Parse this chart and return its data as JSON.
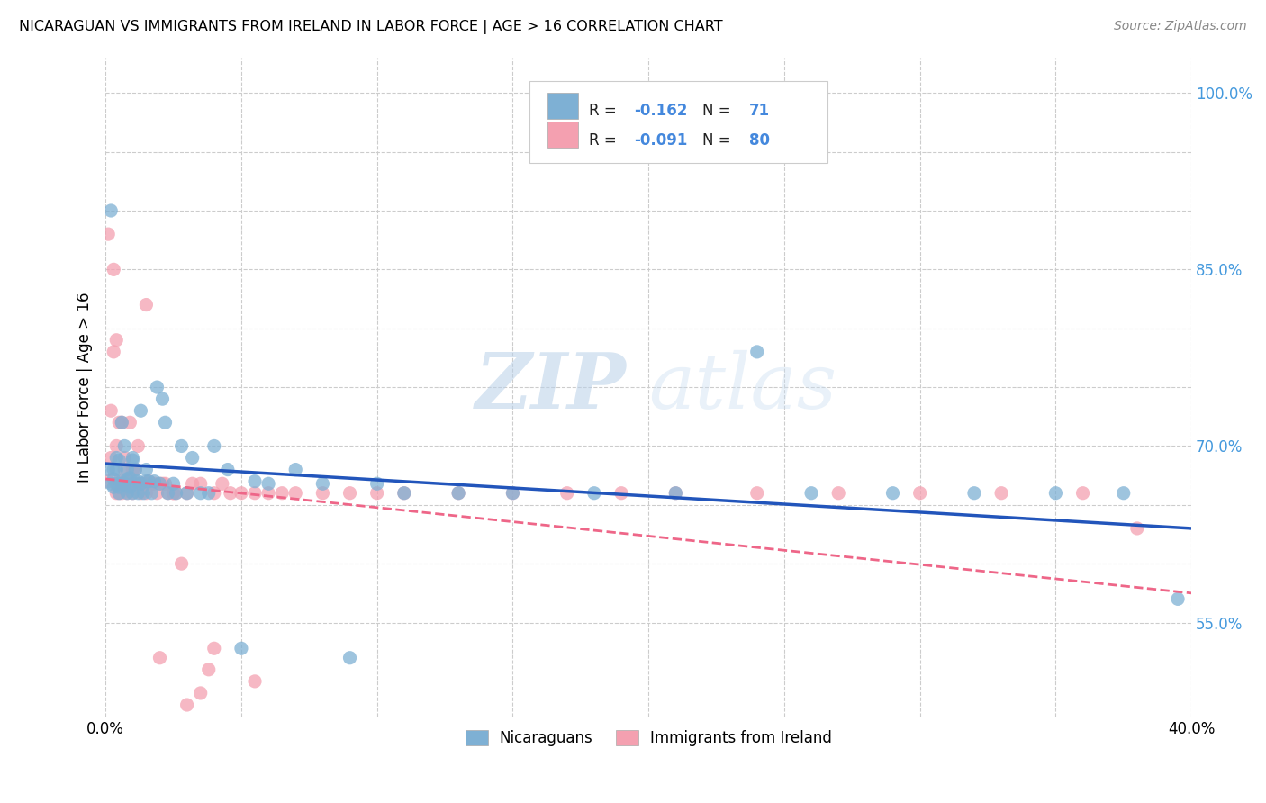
{
  "title": "NICARAGUAN VS IMMIGRANTS FROM IRELAND IN LABOR FORCE | AGE > 16 CORRELATION CHART",
  "source": "Source: ZipAtlas.com",
  "ylabel": "In Labor Force | Age > 16",
  "x_min": 0.0,
  "x_max": 0.4,
  "y_min": 0.47,
  "y_max": 1.03,
  "blue_R": -0.162,
  "blue_N": 71,
  "pink_R": -0.091,
  "pink_N": 80,
  "blue_color": "#7eb0d4",
  "pink_color": "#f4a0b0",
  "blue_line_color": "#2255bb",
  "pink_line_color": "#ee6688",
  "watermark_zip": "ZIP",
  "watermark_atlas": "atlas",
  "legend_label_blue": "Nicaraguans",
  "legend_label_pink": "Immigrants from Ireland",
  "blue_scatter_x": [
    0.001,
    0.002,
    0.002,
    0.003,
    0.003,
    0.003,
    0.004,
    0.004,
    0.004,
    0.005,
    0.005,
    0.005,
    0.006,
    0.006,
    0.006,
    0.007,
    0.007,
    0.007,
    0.008,
    0.008,
    0.008,
    0.009,
    0.009,
    0.01,
    0.01,
    0.01,
    0.011,
    0.011,
    0.012,
    0.012,
    0.013,
    0.013,
    0.014,
    0.015,
    0.015,
    0.016,
    0.017,
    0.018,
    0.019,
    0.02,
    0.021,
    0.022,
    0.023,
    0.025,
    0.026,
    0.028,
    0.03,
    0.032,
    0.035,
    0.038,
    0.04,
    0.045,
    0.05,
    0.055,
    0.06,
    0.07,
    0.08,
    0.09,
    0.1,
    0.11,
    0.13,
    0.15,
    0.18,
    0.21,
    0.24,
    0.26,
    0.29,
    0.32,
    0.35,
    0.375,
    0.395
  ],
  "blue_scatter_y": [
    0.68,
    0.668,
    0.9,
    0.672,
    0.68,
    0.665,
    0.68,
    0.69,
    0.668,
    0.665,
    0.688,
    0.66,
    0.72,
    0.67,
    0.668,
    0.668,
    0.7,
    0.668,
    0.672,
    0.68,
    0.66,
    0.665,
    0.673,
    0.69,
    0.66,
    0.688,
    0.67,
    0.68,
    0.67,
    0.66,
    0.73,
    0.668,
    0.66,
    0.68,
    0.67,
    0.67,
    0.66,
    0.67,
    0.75,
    0.668,
    0.74,
    0.72,
    0.66,
    0.668,
    0.66,
    0.7,
    0.66,
    0.69,
    0.66,
    0.66,
    0.7,
    0.68,
    0.528,
    0.67,
    0.668,
    0.68,
    0.668,
    0.52,
    0.668,
    0.66,
    0.66,
    0.66,
    0.66,
    0.66,
    0.78,
    0.66,
    0.66,
    0.66,
    0.66,
    0.66,
    0.57
  ],
  "pink_scatter_x": [
    0.001,
    0.001,
    0.002,
    0.002,
    0.003,
    0.003,
    0.004,
    0.004,
    0.004,
    0.005,
    0.005,
    0.005,
    0.006,
    0.006,
    0.006,
    0.007,
    0.007,
    0.007,
    0.008,
    0.008,
    0.008,
    0.009,
    0.009,
    0.01,
    0.01,
    0.01,
    0.011,
    0.011,
    0.012,
    0.012,
    0.013,
    0.013,
    0.014,
    0.015,
    0.015,
    0.016,
    0.017,
    0.018,
    0.019,
    0.02,
    0.021,
    0.022,
    0.023,
    0.025,
    0.026,
    0.028,
    0.03,
    0.032,
    0.035,
    0.038,
    0.04,
    0.043,
    0.046,
    0.05,
    0.055,
    0.06,
    0.065,
    0.07,
    0.08,
    0.09,
    0.1,
    0.11,
    0.13,
    0.15,
    0.17,
    0.19,
    0.21,
    0.24,
    0.27,
    0.3,
    0.33,
    0.36,
    0.38,
    0.015,
    0.02,
    0.025,
    0.03,
    0.035,
    0.04,
    0.055
  ],
  "pink_scatter_y": [
    0.88,
    0.67,
    0.69,
    0.73,
    0.85,
    0.78,
    0.79,
    0.7,
    0.66,
    0.72,
    0.67,
    0.66,
    0.72,
    0.668,
    0.66,
    0.68,
    0.69,
    0.668,
    0.668,
    0.66,
    0.67,
    0.67,
    0.72,
    0.668,
    0.68,
    0.66,
    0.68,
    0.668,
    0.7,
    0.668,
    0.668,
    0.66,
    0.668,
    0.66,
    0.668,
    0.67,
    0.668,
    0.668,
    0.66,
    0.668,
    0.668,
    0.668,
    0.66,
    0.66,
    0.66,
    0.6,
    0.66,
    0.668,
    0.668,
    0.51,
    0.528,
    0.668,
    0.66,
    0.66,
    0.66,
    0.66,
    0.66,
    0.66,
    0.66,
    0.66,
    0.66,
    0.66,
    0.66,
    0.66,
    0.66,
    0.66,
    0.66,
    0.66,
    0.66,
    0.66,
    0.66,
    0.66,
    0.63,
    0.82,
    0.52,
    0.66,
    0.48,
    0.49,
    0.66,
    0.5
  ],
  "blue_line_x0": 0.0,
  "blue_line_x1": 0.4,
  "blue_line_y0": 0.685,
  "blue_line_y1": 0.63,
  "pink_line_x0": 0.0,
  "pink_line_x1": 0.4,
  "pink_line_y0": 0.672,
  "pink_line_y1": 0.575
}
